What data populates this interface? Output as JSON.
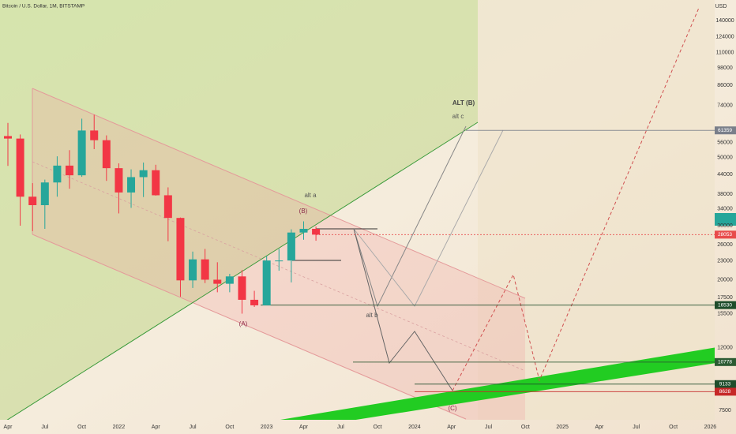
{
  "chart_data": {
    "type": "candlestick",
    "title": "Bitcoin / U.S. Dollar, 1M, BITSTAMP",
    "y_axis_label": "USD",
    "log_scale": true,
    "grid": false,
    "up_color": "#26a69a",
    "down_color": "#f23645",
    "x": [
      "2021-04",
      "2021-05",
      "2021-06",
      "2021-07",
      "2021-08",
      "2021-09",
      "2021-10",
      "2021-11",
      "2021-12",
      "2022-01",
      "2022-02",
      "2022-03",
      "2022-04",
      "2022-05",
      "2022-06",
      "2022-07",
      "2022-08",
      "2022-09",
      "2022-10",
      "2022-11",
      "2022-12",
      "2023-01",
      "2023-02",
      "2023-03",
      "2023-04",
      "2023-05"
    ],
    "open": [
      58800,
      57700,
      37300,
      35000,
      41500,
      47100,
      43800,
      61300,
      57000,
      46200,
      38500,
      43200,
      45500,
      37700,
      31800,
      19900,
      23300,
      20000,
      19400,
      20500,
      17200,
      16500,
      23100,
      23100,
      28500,
      29300
    ],
    "high": [
      64900,
      59500,
      41300,
      42400,
      50500,
      52900,
      67000,
      69000,
      59100,
      47900,
      45800,
      48200,
      47400,
      40000,
      31900,
      24700,
      25200,
      22800,
      20900,
      21500,
      18400,
      23900,
      25200,
      29200,
      31000,
      29800
    ],
    "low": [
      47000,
      30000,
      28800,
      29300,
      37300,
      39600,
      43300,
      53300,
      42000,
      32900,
      34300,
      37200,
      37600,
      26700,
      17600,
      18800,
      19500,
      18200,
      18200,
      15500,
      16300,
      16500,
      21400,
      19600,
      27000,
      26800
    ],
    "close": [
      57700,
      37300,
      35000,
      41500,
      47100,
      43800,
      61300,
      57000,
      46200,
      38500,
      43200,
      45500,
      37700,
      31800,
      19900,
      23300,
      20000,
      19400,
      20500,
      17200,
      16500,
      23100,
      23100,
      28500,
      29300,
      28053
    ],
    "ylim": [
      6280,
      163300
    ],
    "yticks": [
      140000,
      124000,
      110000,
      98000,
      86000,
      74000,
      56000,
      50000,
      44000,
      38000,
      34000,
      30000,
      26000,
      23000,
      20000,
      17500,
      15500,
      12000,
      7500
    ],
    "xlim": [
      "2021-03",
      "2026-02"
    ],
    "xticks": [
      {
        "value": "2021-04",
        "label": "Apr"
      },
      {
        "value": "2021-07",
        "label": "Jul"
      },
      {
        "value": "2021-10",
        "label": "Oct"
      },
      {
        "value": "2022-01",
        "label": "2022"
      },
      {
        "value": "2022-04",
        "label": "Apr"
      },
      {
        "value": "2022-07",
        "label": "Jul"
      },
      {
        "value": "2022-10",
        "label": "Oct"
      },
      {
        "value": "2023-01",
        "label": "2023"
      },
      {
        "value": "2023-04",
        "label": "Apr"
      },
      {
        "value": "2023-07",
        "label": "Jul"
      },
      {
        "value": "2023-10",
        "label": "Oct"
      },
      {
        "value": "2024-01",
        "label": "2024"
      },
      {
        "value": "2024-04",
        "label": "Apr"
      },
      {
        "value": "2024-07",
        "label": "Jul"
      },
      {
        "value": "2024-10",
        "label": "Oct"
      },
      {
        "value": "2025-01",
        "label": "2025"
      },
      {
        "value": "2025-04",
        "label": "Apr"
      },
      {
        "value": "2025-07",
        "label": "Jul"
      },
      {
        "value": "2025-10",
        "label": "Oct"
      },
      {
        "value": "2026-01",
        "label": "2026"
      }
    ],
    "price_levels": [
      {
        "value": 61359,
        "color": "#7a7f8a"
      },
      {
        "value": 28053,
        "color": "#e84b4b"
      },
      {
        "value": 16530,
        "color": "#1e4d2b"
      },
      {
        "value": 10778,
        "color": "#2c5a33"
      },
      {
        "value": 9133,
        "color": "#1e4d2b"
      },
      {
        "value": 8628,
        "color": "#c62828"
      }
    ],
    "annotations": [
      "ALT (B)",
      "alt c",
      "alt a",
      "(B)",
      "(A)",
      "alt b",
      "(C)"
    ]
  }
}
